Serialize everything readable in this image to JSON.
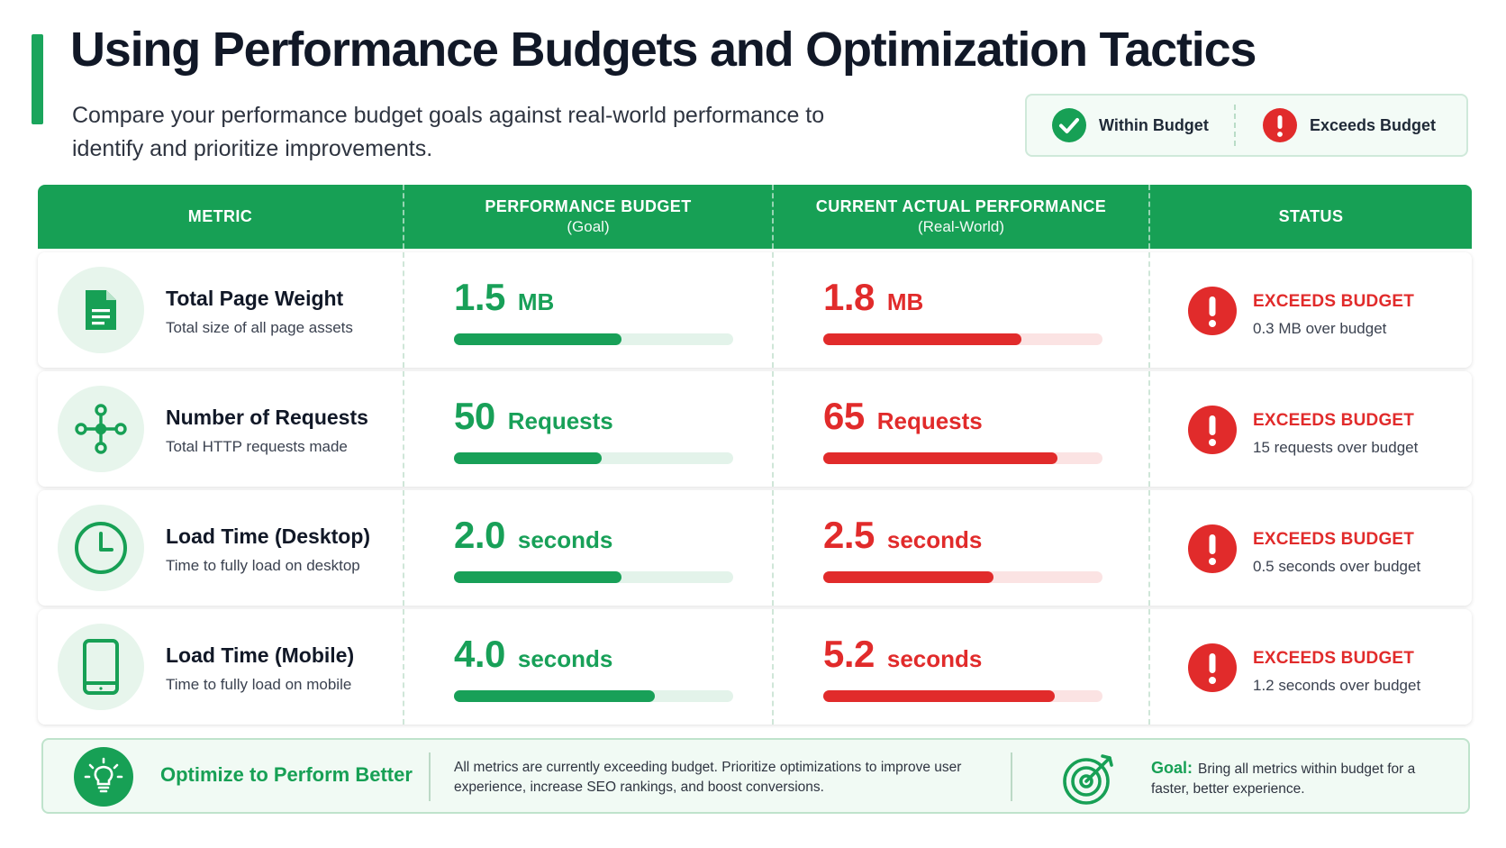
{
  "header": {
    "title": "Using Performance Budgets and Optimization Tactics",
    "subtitle": "Compare your performance budget goals against real-world performance to identify and prioritize improvements."
  },
  "legend": {
    "within_label": "Within Budget",
    "within_icon": "check-circle-icon",
    "exceeds_label": "Exceeds Budget",
    "exceeds_icon": "alert-circle-icon"
  },
  "colors": {
    "accent_green": "#17a055",
    "alert_red": "#e12b2b"
  },
  "table": {
    "headers": {
      "metric": "METRIC",
      "budget": "PERFORMANCE BUDGET",
      "budget_sub": "(Goal)",
      "actual": "CURRENT ACTUAL PERFORMANCE",
      "actual_sub": "(Real-World)",
      "status": "STATUS"
    },
    "rows": [
      {
        "icon": "document-icon",
        "name": "Total Page Weight",
        "desc": "Total size of all page assets",
        "budget": {
          "value": "1.5",
          "unit": "MB",
          "fill": 0.6
        },
        "actual": {
          "value": "1.8",
          "unit": "MB",
          "fill": 0.71
        },
        "status": {
          "label": "EXCEEDS BUDGET",
          "detail": "0.3 MB over budget"
        }
      },
      {
        "icon": "network-nodes-icon",
        "name": "Number of Requests",
        "desc": "Total HTTP requests made",
        "budget": {
          "value": "50",
          "unit": "Requests",
          "fill": 0.53
        },
        "actual": {
          "value": "65",
          "unit": "Requests",
          "fill": 0.84
        },
        "status": {
          "label": "EXCEEDS BUDGET",
          "detail": "15 requests over budget"
        }
      },
      {
        "icon": "clock-icon",
        "name": "Load Time (Desktop)",
        "desc": "Time to fully load on desktop",
        "budget": {
          "value": "2.0",
          "unit": "seconds",
          "fill": 0.6
        },
        "actual": {
          "value": "2.5",
          "unit": "seconds",
          "fill": 0.61
        },
        "status": {
          "label": "EXCEEDS BUDGET",
          "detail": "0.5 seconds over budget"
        }
      },
      {
        "icon": "smartphone-icon",
        "name": "Load Time (Mobile)",
        "desc": "Time to fully load on mobile",
        "budget": {
          "value": "4.0",
          "unit": "seconds",
          "fill": 0.72
        },
        "actual": {
          "value": "5.2",
          "unit": "seconds",
          "fill": 0.83
        },
        "status": {
          "label": "EXCEEDS BUDGET",
          "detail": "1.2 seconds over budget"
        }
      }
    ]
  },
  "footer": {
    "cta": "Optimize to Perform Better",
    "cta_icon": "lightbulb-icon",
    "note": "All metrics are currently exceeding budget. Prioritize optimizations to improve user experience, increase SEO rankings, and boost conversions.",
    "goal_icon": "target-icon",
    "goal_label": "Goal:",
    "goal_text": "Bring all metrics within budget for a faster, better experience."
  }
}
